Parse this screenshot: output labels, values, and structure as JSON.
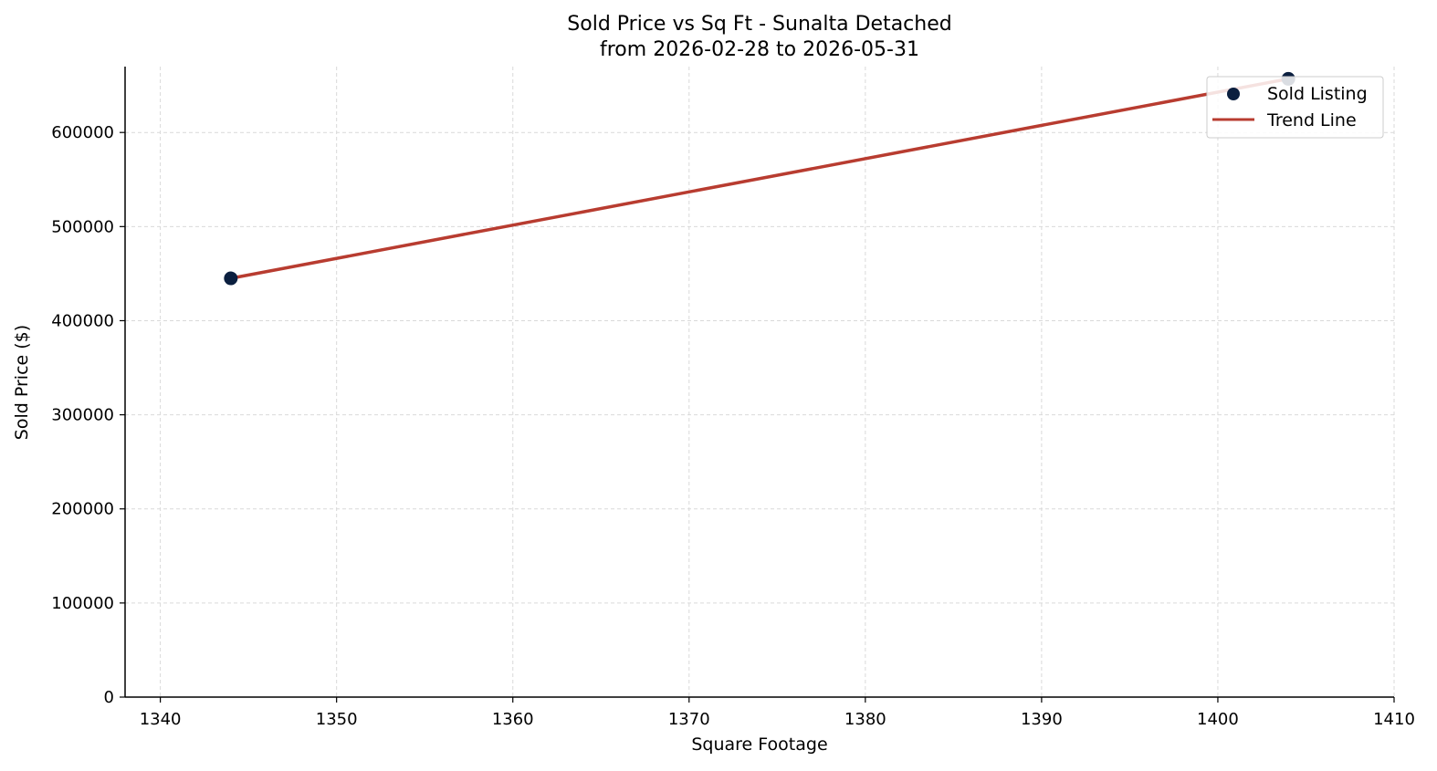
{
  "chart_data": {
    "type": "scatter",
    "title": "Sold Price vs Sq Ft - Sunalta Detached",
    "subtitle": "from 2026-02-28 to 2026-05-31",
    "xlabel": "Square Footage",
    "ylabel": "Sold Price ($)",
    "xlim": [
      1338,
      1410
    ],
    "ylim": [
      0,
      670000
    ],
    "xticks": [
      1340,
      1350,
      1360,
      1370,
      1380,
      1390,
      1400,
      1410
    ],
    "yticks": [
      0,
      100000,
      200000,
      300000,
      400000,
      500000,
      600000
    ],
    "grid": true,
    "legend_position": "top-right",
    "series": [
      {
        "name": "Sold Listing",
        "kind": "scatter",
        "color": "#0b1f3f",
        "points": [
          {
            "x": 1344,
            "y": 445000
          },
          {
            "x": 1404,
            "y": 657000
          }
        ]
      },
      {
        "name": "Trend Line",
        "kind": "line",
        "color": "#b83c30",
        "points": [
          {
            "x": 1344,
            "y": 445000
          },
          {
            "x": 1404,
            "y": 657000
          }
        ]
      }
    ]
  }
}
